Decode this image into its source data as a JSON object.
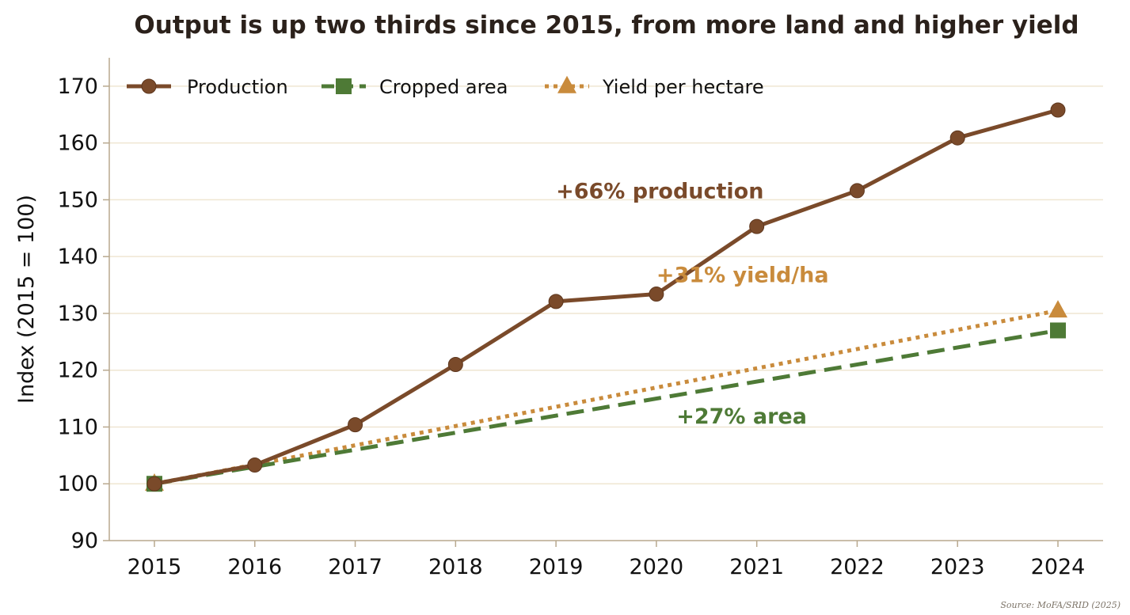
{
  "chart_data": {
    "type": "line",
    "title": "Output is up two thirds since 2015, from more land and higher yield",
    "xlabel": "",
    "ylabel": "Index (2015 = 100)",
    "x": [
      2015,
      2016,
      2017,
      2018,
      2019,
      2020,
      2021,
      2022,
      2023,
      2024
    ],
    "ylim": [
      90,
      175
    ],
    "yticks": [
      90,
      100,
      110,
      120,
      130,
      140,
      150,
      160,
      170
    ],
    "grid": "horizontal",
    "legend_position": "top-left",
    "series": [
      {
        "name": "Production",
        "color": "#7a4a2a",
        "marker": "circle",
        "line_style": "solid",
        "values": [
          100,
          103.3,
          110.4,
          121.0,
          132.1,
          133.4,
          145.3,
          151.6,
          160.9,
          165.8
        ]
      },
      {
        "name": "Cropped area",
        "color": "#4e7a36",
        "marker": "square",
        "line_style": "dashed",
        "values": [
          100,
          null,
          null,
          null,
          null,
          null,
          null,
          null,
          null,
          127.0
        ]
      },
      {
        "name": "Yield per hectare",
        "color": "#c98b3c",
        "marker": "triangle",
        "line_style": "dotted",
        "values": [
          100,
          null,
          null,
          null,
          null,
          null,
          null,
          null,
          null,
          130.5
        ]
      }
    ],
    "annotations": [
      {
        "text": "+66% production",
        "color": "#7a4a2a",
        "x": 2019.0,
        "y": 150.3
      },
      {
        "text": "+31% yield/ha",
        "color": "#c98b3c",
        "x": 2020.0,
        "y": 135.5
      },
      {
        "text": "+27% area",
        "color": "#4e7a36",
        "x": 2020.2,
        "y": 110.6
      }
    ],
    "colors": {
      "grid": "#efe6d2",
      "axis": "#b8a88e",
      "text": "#111111",
      "title": "#2b211b"
    }
  },
  "source": "Source: MoFA/SRID (2025)"
}
